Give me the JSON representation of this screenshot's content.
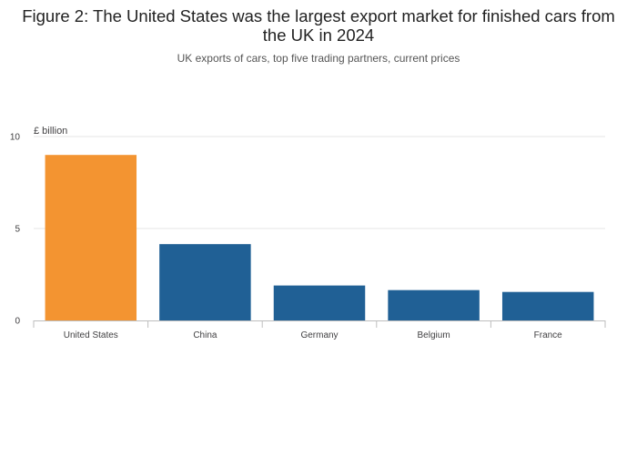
{
  "chart_data": {
    "type": "bar",
    "title": "Figure 2: The United States was the largest export market for finished cars from the UK in 2024",
    "subtitle": "UK exports of cars, top five trading partners, current prices",
    "ylabel": "£ billion",
    "xlabel": "",
    "categories": [
      "United States",
      "China",
      "Germany",
      "Belgium",
      "France"
    ],
    "values": [
      9.0,
      4.15,
      1.9,
      1.65,
      1.55
    ],
    "ylim": [
      0,
      10
    ],
    "yticks": [
      0,
      5,
      10
    ],
    "grid": true,
    "legend": "none",
    "colors": {
      "highlight": "#F39431",
      "default": "#206095",
      "grid": "#E6E6E6",
      "axis": "#BEBEBE"
    },
    "highlight_index": 0
  }
}
